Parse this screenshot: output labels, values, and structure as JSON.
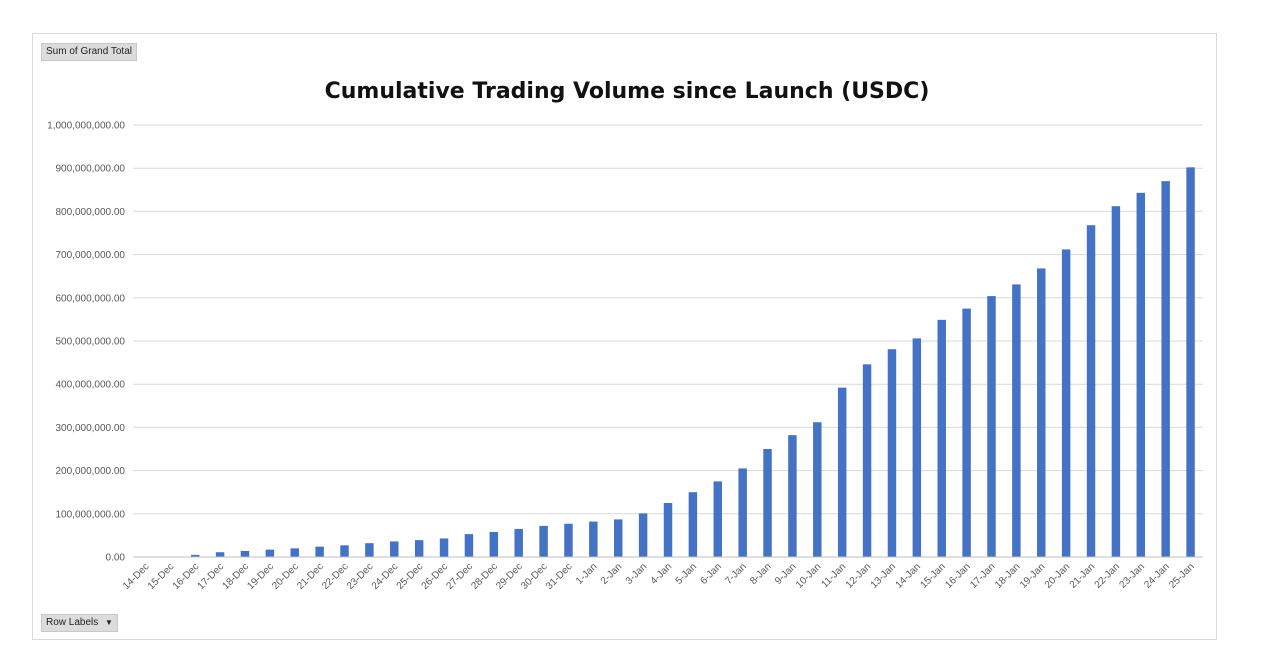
{
  "pivot": {
    "value_field_label": "Sum of Grand Total",
    "row_labels_label": "Row Labels",
    "dropdown_icon": "chevron-down-icon"
  },
  "colors": {
    "bar": "#4472c4",
    "grid": "#d9d9d9",
    "axis": "#bfbfbf"
  },
  "chart_data": {
    "type": "bar",
    "title": "Cumulative Trading Volume since Launch (USDC)",
    "xlabel": "",
    "ylabel": "",
    "ylim": [
      0,
      1000000000
    ],
    "yticks": [
      0,
      100000000,
      200000000,
      300000000,
      400000000,
      500000000,
      600000000,
      700000000,
      800000000,
      900000000,
      1000000000
    ],
    "ytick_labels": [
      "0.00",
      "100,000,000.00",
      "200,000,000.00",
      "300,000,000.00",
      "400,000,000.00",
      "500,000,000.00",
      "600,000,000.00",
      "700,000,000.00",
      "800,000,000.00",
      "900,000,000.00",
      "1,000,000,000.00"
    ],
    "grid": true,
    "legend": "none",
    "categories": [
      "14-Dec",
      "15-Dec",
      "16-Dec",
      "17-Dec",
      "18-Dec",
      "19-Dec",
      "20-Dec",
      "21-Dec",
      "22-Dec",
      "23-Dec",
      "24-Dec",
      "25-Dec",
      "26-Dec",
      "27-Dec",
      "28-Dec",
      "29-Dec",
      "30-Dec",
      "31-Dec",
      "1-Jan",
      "2-Jan",
      "3-Jan",
      "4-Jan",
      "5-Jan",
      "6-Jan",
      "7-Jan",
      "8-Jan",
      "9-Jan",
      "10-Jan",
      "11-Jan",
      "12-Jan",
      "13-Jan",
      "14-Jan",
      "15-Jan",
      "16-Jan",
      "17-Jan",
      "18-Jan",
      "19-Jan",
      "20-Jan",
      "21-Jan",
      "22-Jan",
      "23-Jan",
      "24-Jan",
      "25-Jan"
    ],
    "values": [
      0,
      1000000,
      5000000,
      11000000,
      14000000,
      17000000,
      20000000,
      24000000,
      27000000,
      32000000,
      36000000,
      39000000,
      43000000,
      53000000,
      58000000,
      65000000,
      72000000,
      77000000,
      82000000,
      87000000,
      101000000,
      125000000,
      150000000,
      175000000,
      205000000,
      250000000,
      282000000,
      312000000,
      392000000,
      446000000,
      481000000,
      506000000,
      549000000,
      575000000,
      604000000,
      631000000,
      668000000,
      712000000,
      768000000,
      812000000,
      843000000,
      870000000,
      902000000
    ]
  }
}
